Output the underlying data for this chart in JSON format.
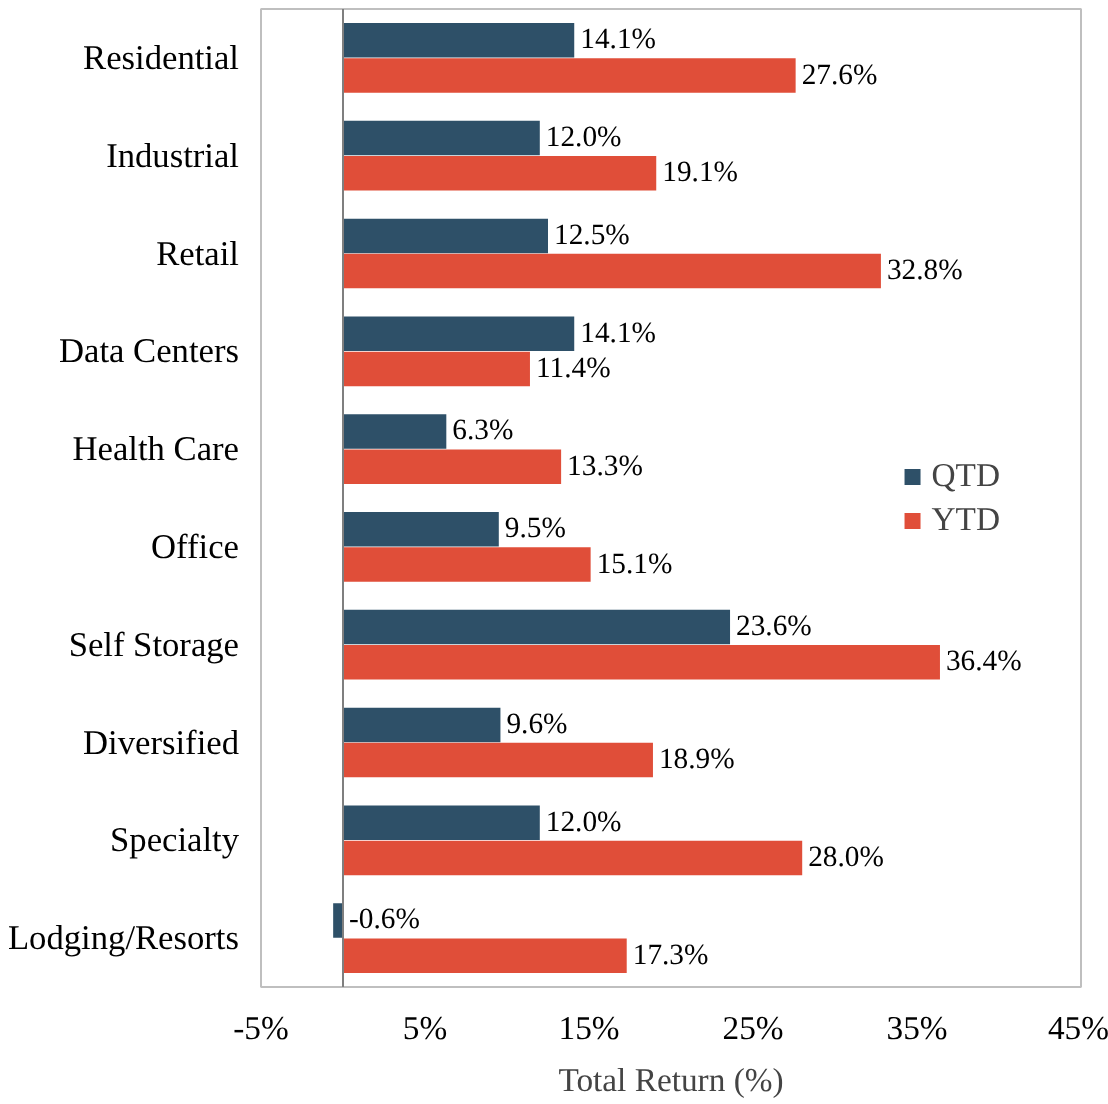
{
  "chart_data": {
    "type": "bar",
    "orientation": "horizontal",
    "xlabel": "Total Return (%)",
    "categories": [
      "Residential",
      "Industrial",
      "Retail",
      "Data Centers",
      "Health Care",
      "Office",
      "Self Storage",
      "Diversified",
      "Specialty",
      "Lodging/Resorts"
    ],
    "series": [
      {
        "name": "QTD",
        "color": "#2e5068",
        "values": [
          14.1,
          12.0,
          12.5,
          14.1,
          6.3,
          9.5,
          23.6,
          9.6,
          12.0,
          -0.6
        ],
        "value_labels": [
          "14.1%",
          "12.0%",
          "12.5%",
          "14.1%",
          "6.3%",
          "9.5%",
          "23.6%",
          "9.6%",
          "12.0%",
          "-0.6%"
        ]
      },
      {
        "name": "YTD",
        "color": "#e04e39",
        "values": [
          27.6,
          19.1,
          32.8,
          11.4,
          13.3,
          15.1,
          36.4,
          18.9,
          28.0,
          17.3
        ],
        "value_labels": [
          "27.6%",
          "19.1%",
          "32.8%",
          "11.4%",
          "13.3%",
          "15.1%",
          "36.4%",
          "18.9%",
          "28.0%",
          "17.3%"
        ]
      }
    ],
    "xlim": [
      -5,
      45
    ],
    "xticks": [
      {
        "value": -5,
        "label": "-5%"
      },
      {
        "value": 5,
        "label": "5%"
      },
      {
        "value": 15,
        "label": "15%"
      },
      {
        "value": 25,
        "label": "25%"
      },
      {
        "value": 35,
        "label": "35%"
      },
      {
        "value": 45,
        "label": "45%"
      }
    ],
    "ref_lines": [
      {
        "axis": "x",
        "value": 0,
        "color": "#7f7f7f"
      }
    ],
    "grid": false,
    "legend": "right"
  }
}
